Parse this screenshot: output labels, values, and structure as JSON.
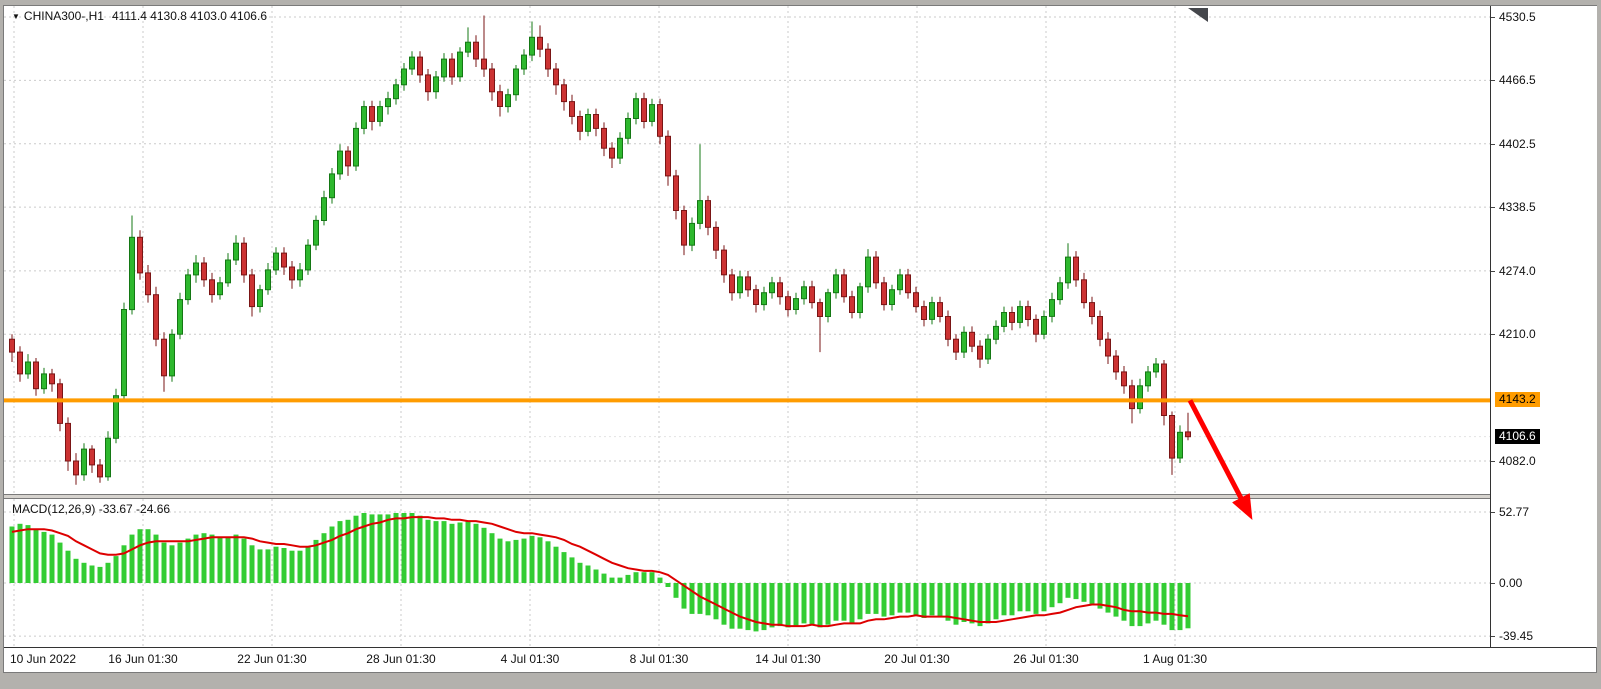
{
  "header": {
    "dropdown_icon": "▼",
    "symbol_timeframe": "CHINA300-,H1",
    "ohlc": "4111.4 4130.8 4103.0 4106.6"
  },
  "macd_header": "MACD(12,26,9) -33.67 -24.66",
  "colors": {
    "bull": "#2eb82e",
    "bull_edge": "#147814",
    "bear": "#cc3333",
    "bear_edge": "#7a1515",
    "macd_hist": "#33cc33",
    "signal": "#dd0000",
    "orange_line": "#ff9c00",
    "badge_black_bg": "#000000",
    "badge_black_text": "#ffffff",
    "grid": "#cbcbcb",
    "arrow": "#ff0000"
  },
  "chart_data": {
    "type": "candlestick",
    "symbol": "CHINA300-",
    "timeframe": "H1",
    "ohlc_header": {
      "open": 4111.4,
      "high": 4130.8,
      "low": 4103.0,
      "close": 4106.6
    },
    "price_ticks": [
      4530.5,
      4466.5,
      4402.5,
      4338.5,
      4274.0,
      4210.0,
      4082.0
    ],
    "price_tick_labels": [
      "4530.5",
      "4466.5",
      "4402.5",
      "4338.5",
      "4274.0",
      "4210.0",
      "4082.0"
    ],
    "orange_line_price": 4143.2,
    "orange_line_label": "4143.2",
    "bid_price": 4106.6,
    "bid_label": "4106.6",
    "time_labels": [
      "10 Jun 2022",
      "16 Jun 01:30",
      "22 Jun 01:30",
      "28 Jun 01:30",
      "4 Jul 01:30",
      "8 Jul 01:30",
      "14 Jul 01:30",
      "20 Jul 01:30",
      "26 Jul 01:30",
      "1 Aug 01:30"
    ],
    "candles": [
      [
        4205,
        4210,
        4182,
        4192
      ],
      [
        4192,
        4198,
        4162,
        4170
      ],
      [
        4170,
        4190,
        4165,
        4182
      ],
      [
        4182,
        4186,
        4148,
        4155
      ],
      [
        4155,
        4176,
        4150,
        4170
      ],
      [
        4170,
        4175,
        4152,
        4160
      ],
      [
        4160,
        4165,
        4112,
        4120
      ],
      [
        4120,
        4126,
        4072,
        4082
      ],
      [
        4082,
        4090,
        4058,
        4068
      ],
      [
        4068,
        4100,
        4062,
        4094
      ],
      [
        4094,
        4098,
        4070,
        4078
      ],
      [
        4078,
        4084,
        4060,
        4066
      ],
      [
        4066,
        4112,
        4062,
        4105
      ],
      [
        4105,
        4155,
        4100,
        4148
      ],
      [
        4148,
        4242,
        4144,
        4235
      ],
      [
        4235,
        4330,
        4230,
        4308
      ],
      [
        4308,
        4315,
        4265,
        4272
      ],
      [
        4272,
        4280,
        4242,
        4250
      ],
      [
        4250,
        4258,
        4198,
        4205
      ],
      [
        4205,
        4212,
        4152,
        4168
      ],
      [
        4168,
        4215,
        4162,
        4210
      ],
      [
        4210,
        4252,
        4205,
        4245
      ],
      [
        4245,
        4276,
        4240,
        4270
      ],
      [
        4270,
        4290,
        4262,
        4282
      ],
      [
        4282,
        4288,
        4258,
        4265
      ],
      [
        4265,
        4272,
        4242,
        4250
      ],
      [
        4250,
        4268,
        4245,
        4262
      ],
      [
        4262,
        4292,
        4258,
        4285
      ],
      [
        4285,
        4310,
        4280,
        4302
      ],
      [
        4302,
        4308,
        4262,
        4270
      ],
      [
        4270,
        4276,
        4228,
        4238
      ],
      [
        4238,
        4260,
        4232,
        4255
      ],
      [
        4255,
        4282,
        4250,
        4275
      ],
      [
        4275,
        4298,
        4270,
        4292
      ],
      [
        4292,
        4298,
        4270,
        4278
      ],
      [
        4278,
        4284,
        4256,
        4265
      ],
      [
        4265,
        4282,
        4258,
        4275
      ],
      [
        4275,
        4306,
        4270,
        4300
      ],
      [
        4300,
        4330,
        4295,
        4325
      ],
      [
        4325,
        4355,
        4320,
        4348
      ],
      [
        4348,
        4378,
        4342,
        4372
      ],
      [
        4372,
        4402,
        4366,
        4395
      ],
      [
        4395,
        4400,
        4370,
        4380
      ],
      [
        4380,
        4424,
        4375,
        4418
      ],
      [
        4418,
        4446,
        4412,
        4440
      ],
      [
        4440,
        4446,
        4416,
        4425
      ],
      [
        4425,
        4446,
        4420,
        4440
      ],
      [
        4440,
        4455,
        4432,
        4448
      ],
      [
        4448,
        4468,
        4442,
        4462
      ],
      [
        4462,
        4484,
        4456,
        4478
      ],
      [
        4478,
        4496,
        4472,
        4490
      ],
      [
        4490,
        4496,
        4464,
        4472
      ],
      [
        4472,
        4478,
        4446,
        4455
      ],
      [
        4455,
        4476,
        4448,
        4470
      ],
      [
        4470,
        4494,
        4465,
        4488
      ],
      [
        4488,
        4494,
        4462,
        4470
      ],
      [
        4470,
        4500,
        4465,
        4495
      ],
      [
        4495,
        4520,
        4490,
        4505
      ],
      [
        4505,
        4512,
        4480,
        4488
      ],
      [
        4488,
        4532,
        4470,
        4478
      ],
      [
        4478,
        4484,
        4446,
        4455
      ],
      [
        4455,
        4462,
        4430,
        4440
      ],
      [
        4440,
        4458,
        4434,
        4452
      ],
      [
        4452,
        4482,
        4446,
        4478
      ],
      [
        4478,
        4498,
        4472,
        4492
      ],
      [
        4492,
        4526,
        4486,
        4510
      ],
      [
        4510,
        4522,
        4490,
        4498
      ],
      [
        4498,
        4504,
        4470,
        4478
      ],
      [
        4478,
        4484,
        4452,
        4462
      ],
      [
        4462,
        4468,
        4436,
        4445
      ],
      [
        4445,
        4452,
        4422,
        4430
      ],
      [
        4430,
        4436,
        4406,
        4415
      ],
      [
        4415,
        4438,
        4410,
        4432
      ],
      [
        4432,
        4438,
        4410,
        4418
      ],
      [
        4418,
        4424,
        4390,
        4398
      ],
      [
        4398,
        4404,
        4378,
        4388
      ],
      [
        4388,
        4414,
        4382,
        4408
      ],
      [
        4408,
        4434,
        4402,
        4428
      ],
      [
        4428,
        4454,
        4422,
        4448
      ],
      [
        4448,
        4454,
        4418,
        4425
      ],
      [
        4425,
        4448,
        4420,
        4442
      ],
      [
        4442,
        4448,
        4402,
        4410
      ],
      [
        4410,
        4416,
        4360,
        4370
      ],
      [
        4370,
        4376,
        4326,
        4335
      ],
      [
        4335,
        4340,
        4290,
        4300
      ],
      [
        4300,
        4328,
        4294,
        4322
      ],
      [
        4322,
        4402,
        4316,
        4345
      ],
      [
        4345,
        4350,
        4310,
        4318
      ],
      [
        4318,
        4324,
        4286,
        4295
      ],
      [
        4295,
        4300,
        4262,
        4270
      ],
      [
        4270,
        4276,
        4244,
        4252
      ],
      [
        4252,
        4274,
        4246,
        4268
      ],
      [
        4268,
        4274,
        4248,
        4255
      ],
      [
        4255,
        4260,
        4232,
        4240
      ],
      [
        4240,
        4258,
        4234,
        4252
      ],
      [
        4252,
        4268,
        4246,
        4262
      ],
      [
        4262,
        4268,
        4240,
        4248
      ],
      [
        4248,
        4254,
        4228,
        4235
      ],
      [
        4235,
        4252,
        4230,
        4246
      ],
      [
        4246,
        4264,
        4240,
        4258
      ],
      [
        4258,
        4264,
        4236,
        4242
      ],
      [
        4242,
        4246,
        4192,
        4228
      ],
      [
        4228,
        4256,
        4222,
        4252
      ],
      [
        4252,
        4276,
        4246,
        4270
      ],
      [
        4270,
        4276,
        4242,
        4248
      ],
      [
        4248,
        4254,
        4226,
        4232
      ],
      [
        4232,
        4262,
        4226,
        4258
      ],
      [
        4258,
        4296,
        4252,
        4288
      ],
      [
        4288,
        4294,
        4256,
        4262
      ],
      [
        4262,
        4268,
        4234,
        4240
      ],
      [
        4240,
        4260,
        4234,
        4255
      ],
      [
        4255,
        4276,
        4250,
        4270
      ],
      [
        4270,
        4276,
        4246,
        4252
      ],
      [
        4252,
        4258,
        4232,
        4238
      ],
      [
        4238,
        4244,
        4218,
        4225
      ],
      [
        4225,
        4248,
        4220,
        4242
      ],
      [
        4242,
        4248,
        4222,
        4228
      ],
      [
        4228,
        4234,
        4198,
        4205
      ],
      [
        4205,
        4210,
        4184,
        4192
      ],
      [
        4192,
        4218,
        4186,
        4212
      ],
      [
        4212,
        4218,
        4192,
        4198
      ],
      [
        4198,
        4204,
        4176,
        4185
      ],
      [
        4185,
        4210,
        4180,
        4205
      ],
      [
        4205,
        4224,
        4200,
        4218
      ],
      [
        4218,
        4238,
        4212,
        4232
      ],
      [
        4232,
        4238,
        4214,
        4222
      ],
      [
        4222,
        4244,
        4216,
        4238
      ],
      [
        4238,
        4244,
        4218,
        4225
      ],
      [
        4225,
        4230,
        4202,
        4210
      ],
      [
        4210,
        4234,
        4205,
        4228
      ],
      [
        4228,
        4252,
        4222,
        4245
      ],
      [
        4245,
        4268,
        4240,
        4262
      ],
      [
        4262,
        4302,
        4256,
        4288
      ],
      [
        4288,
        4294,
        4258,
        4265
      ],
      [
        4265,
        4272,
        4236,
        4242
      ],
      [
        4242,
        4248,
        4220,
        4228
      ],
      [
        4228,
        4234,
        4198,
        4205
      ],
      [
        4205,
        4212,
        4180,
        4188
      ],
      [
        4188,
        4194,
        4164,
        4172
      ],
      [
        4172,
        4178,
        4150,
        4158
      ],
      [
        4158,
        4164,
        4120,
        4135
      ],
      [
        4135,
        4165,
        4130,
        4158
      ],
      [
        4158,
        4178,
        4152,
        4172
      ],
      [
        4172,
        4186,
        4166,
        4180
      ],
      [
        4180,
        4184,
        4118,
        4128
      ],
      [
        4128,
        4132,
        4068,
        4085
      ],
      [
        4085,
        4118,
        4080,
        4111
      ],
      [
        4111.4,
        4130.8,
        4103.0,
        4106.6
      ]
    ],
    "macd": {
      "label": "MACD(12,26,9)",
      "macd_value": -33.67,
      "signal_value": -24.66,
      "ticks": [
        52.77,
        0,
        -39.45
      ],
      "tick_labels": [
        "52.77",
        "0.00",
        "-39.45"
      ],
      "histogram": [
        42,
        44,
        43,
        40,
        38,
        36,
        30,
        24,
        18,
        15,
        13,
        12,
        15,
        20,
        28,
        36,
        40,
        40,
        36,
        30,
        28,
        30,
        33,
        36,
        37,
        36,
        34,
        34,
        36,
        33,
        28,
        25,
        25,
        27,
        26,
        24,
        24,
        27,
        32,
        37,
        42,
        46,
        47,
        50,
        52,
        51,
        51,
        51,
        52,
        52,
        52,
        50,
        47,
        46,
        46,
        44,
        45,
        46,
        44,
        41,
        37,
        33,
        31,
        32,
        33,
        35,
        34,
        31,
        27,
        23,
        19,
        15,
        13,
        10,
        7,
        4,
        4,
        6,
        8,
        8,
        8,
        4,
        -3,
        -11,
        -19,
        -23,
        -23,
        -24,
        -27,
        -31,
        -34,
        -34,
        -35,
        -36,
        -35,
        -33,
        -32,
        -33,
        -32,
        -30,
        -31,
        -33,
        -31,
        -28,
        -28,
        -30,
        -27,
        -23,
        -23,
        -25,
        -24,
        -22,
        -22,
        -24,
        -26,
        -24,
        -25,
        -28,
        -31,
        -29,
        -30,
        -32,
        -30,
        -27,
        -24,
        -24,
        -21,
        -21,
        -23,
        -21,
        -18,
        -15,
        -11,
        -12,
        -14,
        -16,
        -19,
        -22,
        -25,
        -28,
        -32,
        -32,
        -30,
        -28,
        -31,
        -35,
        -35,
        -33.67
      ],
      "signal": [
        38,
        39,
        40,
        40,
        40,
        39,
        37,
        35,
        31,
        28,
        25,
        22,
        21,
        21,
        22,
        25,
        28,
        30,
        31,
        31,
        31,
        31,
        31,
        32,
        33,
        34,
        34,
        34,
        34,
        34,
        33,
        31,
        30,
        29,
        29,
        28,
        27,
        27,
        28,
        30,
        32,
        35,
        37,
        40,
        42,
        44,
        45,
        47,
        48,
        48,
        49,
        49,
        49,
        48,
        48,
        47,
        47,
        46,
        46,
        45,
        44,
        42,
        40,
        38,
        37,
        37,
        36,
        35,
        34,
        32,
        29,
        27,
        24,
        21,
        18,
        15,
        13,
        11,
        10,
        9,
        9,
        8,
        6,
        2,
        -2,
        -6,
        -10,
        -13,
        -16,
        -19,
        -22,
        -25,
        -27,
        -29,
        -30,
        -31,
        -31,
        -32,
        -32,
        -32,
        -31,
        -32,
        -32,
        -31,
        -30,
        -30,
        -30,
        -28,
        -27,
        -27,
        -26,
        -25,
        -25,
        -24,
        -25,
        -25,
        -25,
        -25,
        -26,
        -27,
        -28,
        -29,
        -29,
        -29,
        -28,
        -27,
        -26,
        -25,
        -24,
        -24,
        -23,
        -22,
        -20,
        -18,
        -17,
        -16,
        -16,
        -17,
        -18,
        -20,
        -21,
        -21,
        -22,
        -22,
        -23,
        -23,
        -24,
        -24.66
      ]
    }
  },
  "annotations": {
    "arrow": {
      "shape": "down-right-arrow",
      "anchor_price": 4143.2
    }
  }
}
